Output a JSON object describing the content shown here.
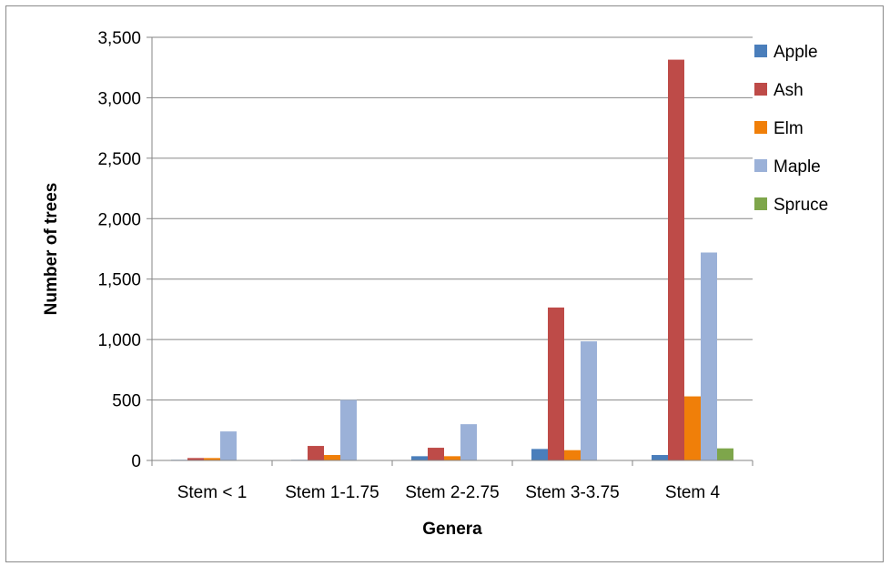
{
  "chart_data": {
    "type": "bar",
    "title": "",
    "xlabel": "Genera",
    "ylabel": "Number of trees",
    "categories": [
      "Stem < 1",
      "Stem 1-1.75",
      "Stem 2-2.75",
      "Stem 3-3.75",
      "Stem 4"
    ],
    "ylim": [
      0,
      3500
    ],
    "yticks": [
      0,
      500,
      1000,
      1500,
      2000,
      2500,
      3000,
      3500
    ],
    "ytick_labels": [
      "0",
      "500",
      "1,000",
      "1,500",
      "2,000",
      "2,500",
      "3,000",
      "3,500"
    ],
    "grid": "horizontal",
    "legend_position": "right",
    "series": [
      {
        "name": "Apple",
        "color": "#4a7ebb",
        "values": [
          5,
          5,
          35,
          95,
          45
        ]
      },
      {
        "name": "Ash",
        "color": "#be4b48",
        "values": [
          20,
          120,
          105,
          1265,
          3315
        ]
      },
      {
        "name": "Elm",
        "color": "#f07f09",
        "values": [
          20,
          45,
          35,
          85,
          530
        ]
      },
      {
        "name": "Maple",
        "color": "#9bb1d8",
        "values": [
          240,
          500,
          300,
          985,
          1720
        ]
      },
      {
        "name": "Spruce",
        "color": "#7ea64b",
        "values": [
          0,
          0,
          0,
          0,
          100
        ]
      }
    ]
  }
}
